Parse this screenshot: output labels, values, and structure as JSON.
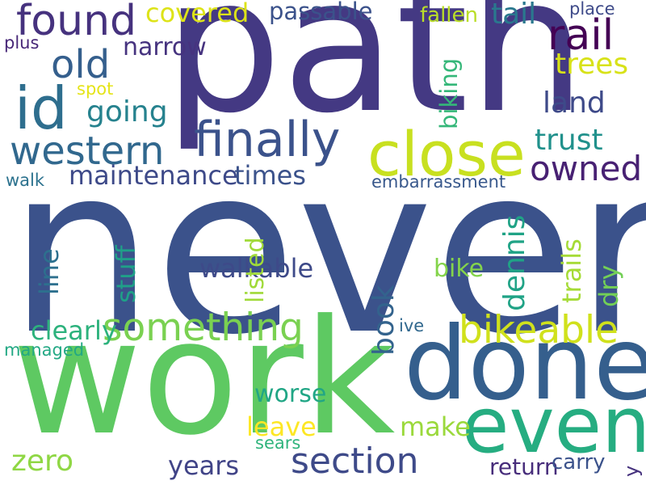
{
  "words": [
    {
      "text": "never",
      "color": "#3b528b"
    },
    {
      "text": "path",
      "color": "#443983"
    },
    {
      "text": "work",
      "color": "#5ec962"
    },
    {
      "text": "done",
      "color": "#355f8d"
    },
    {
      "text": "even",
      "color": "#26ad81"
    },
    {
      "text": "close",
      "color": "#c8e020"
    },
    {
      "text": "finally",
      "color": "#3b528b"
    },
    {
      "text": "western",
      "color": "#31688e"
    },
    {
      "text": "id",
      "color": "#2e6e8e"
    },
    {
      "text": "found",
      "color": "#46327e"
    },
    {
      "text": "old",
      "color": "#355f8d"
    },
    {
      "text": "rail",
      "color": "#440154"
    },
    {
      "text": "something",
      "color": "#7ad151"
    },
    {
      "text": "bikeable",
      "color": "#d0e11c"
    },
    {
      "text": "section",
      "color": "#3e4a89"
    },
    {
      "text": "owned",
      "color": "#482173"
    },
    {
      "text": "covered",
      "color": "#dde318"
    },
    {
      "text": "passable",
      "color": "#3b528b"
    },
    {
      "text": "tail",
      "color": "#2a788e"
    },
    {
      "text": "trees",
      "color": "#d8e219"
    },
    {
      "text": "going",
      "color": "#26828e"
    },
    {
      "text": "land",
      "color": "#3e4a89"
    },
    {
      "text": "trust",
      "color": "#21918c"
    },
    {
      "text": "maintenance",
      "color": "#3e4a89"
    },
    {
      "text": "times",
      "color": "#3b528b"
    },
    {
      "text": "clearly",
      "color": "#2db27d"
    },
    {
      "text": "walkable",
      "color": "#3e4a89"
    },
    {
      "text": "zero",
      "color": "#8fd744"
    },
    {
      "text": "years",
      "color": "#414487"
    },
    {
      "text": "leave",
      "color": "#fde725"
    },
    {
      "text": "make",
      "color": "#9bd93c"
    },
    {
      "text": "worse",
      "color": "#21a685"
    },
    {
      "text": "return",
      "color": "#472d7b"
    },
    {
      "text": "carry",
      "color": "#3b528b"
    },
    {
      "text": "bike",
      "color": "#84d44b"
    },
    {
      "text": "managed",
      "color": "#22a884"
    },
    {
      "text": "fallen",
      "color": "#bade28"
    },
    {
      "text": "place",
      "color": "#3e4a89"
    },
    {
      "text": "plus",
      "color": "#482878"
    },
    {
      "text": "spot",
      "color": "#e5e419"
    },
    {
      "text": "walk",
      "color": "#2c728e"
    },
    {
      "text": "narrow",
      "color": "#46337f"
    },
    {
      "text": "embarrassment",
      "color": "#38588c"
    },
    {
      "text": "ive",
      "color": "#31688e"
    },
    {
      "text": "sears",
      "color": "#2fb47c"
    },
    {
      "text": "biking",
      "color": "#35b779"
    },
    {
      "text": "dennis",
      "color": "#20a386"
    },
    {
      "text": "book",
      "color": "#33638d"
    },
    {
      "text": "dry",
      "color": "#73d056"
    },
    {
      "text": "trails",
      "color": "#a5db36"
    },
    {
      "text": "listed",
      "color": "#a0da39"
    },
    {
      "text": "stuff",
      "color": "#1fa088"
    },
    {
      "text": "line",
      "color": "#2d708e"
    },
    {
      "text": "y",
      "color": "#46327e"
    }
  ]
}
